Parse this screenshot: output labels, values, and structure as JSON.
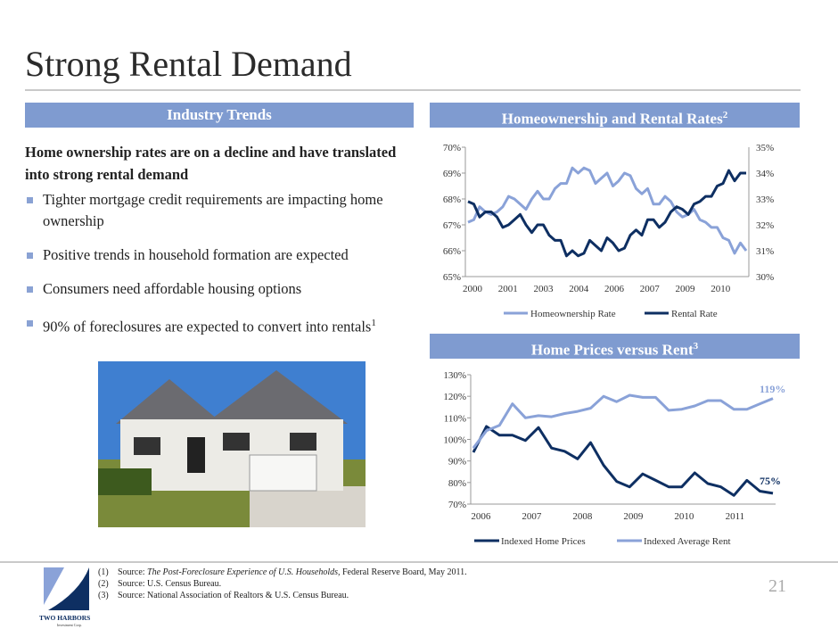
{
  "title": "Strong Rental Demand",
  "left_header": "Industry Trends",
  "right_header1": "Homeownership and Rental Rates",
  "right_header1_sup": "2",
  "right_header2": "Home Prices versus Rent",
  "right_header2_sup": "3",
  "lead": "Home ownership rates are on a decline and have translated into strong rental demand",
  "bullets": [
    "Tighter mortgage credit requirements are impacting home ownership",
    "Positive trends in household formation are expected",
    "Consumers need affordable housing options",
    "90% of foreclosures are expected to convert into rentals"
  ],
  "bullet4_sup": "1",
  "footnotes": [
    {
      "n": "(1)",
      "label": "Source:",
      "italic": "The Post-Foreclosure Experience of U.S. Households,",
      "text": " Federal Reserve Board, May 2011."
    },
    {
      "n": "(2)",
      "label": "Source:",
      "italic": "",
      "text": "U.S. Census Bureau."
    },
    {
      "n": "(3)",
      "label": "Source:",
      "italic": "",
      "text": "National Association of Realtors & U.S. Census Bureau."
    }
  ],
  "logo": {
    "name": "TWO HARBORS",
    "sub": "Investment Corp."
  },
  "page_number": "21",
  "colors": {
    "light": "#8aa2d8",
    "dark": "#0e2f62",
    "header": "#7f9bd0"
  },
  "chart_data": [
    {
      "type": "line",
      "title": "Homeownership and Rental Rates",
      "x_ticks": [
        "2000",
        "2001",
        "2003",
        "2004",
        "2006",
        "2007",
        "2009",
        "2010"
      ],
      "y_left": {
        "ticks": [
          "65%",
          "66%",
          "67%",
          "68%",
          "69%",
          "70%"
        ],
        "range": [
          65,
          70
        ]
      },
      "y_right": {
        "ticks": [
          "30%",
          "31%",
          "32%",
          "33%",
          "34%",
          "35%"
        ],
        "range": [
          30,
          35
        ]
      },
      "legend": "bottom",
      "series": [
        {
          "name": "Homeownership Rate",
          "axis": "left",
          "color": "#8aa2d8",
          "values": [
            67.1,
            67.2,
            67.7,
            67.5,
            67.4,
            67.5,
            67.7,
            68.1,
            68.0,
            67.8,
            67.6,
            68.0,
            68.3,
            68.0,
            68.0,
            68.4,
            68.6,
            68.6,
            69.2,
            69.0,
            69.2,
            69.1,
            68.6,
            68.8,
            69.0,
            68.5,
            68.7,
            69.0,
            68.9,
            68.4,
            68.2,
            68.4,
            67.8,
            67.8,
            68.1,
            67.9,
            67.5,
            67.3,
            67.4,
            67.6,
            67.2,
            67.1,
            66.9,
            66.9,
            66.5,
            66.4,
            65.9,
            66.3,
            66.0
          ]
        },
        {
          "name": "Rental Rate",
          "axis": "right",
          "color": "#0e2f62",
          "values": [
            32.9,
            32.8,
            32.3,
            32.5,
            32.5,
            32.3,
            31.9,
            32.0,
            32.2,
            32.4,
            32.0,
            31.7,
            32.0,
            32.0,
            31.6,
            31.4,
            31.4,
            30.8,
            31.0,
            30.8,
            30.9,
            31.4,
            31.2,
            31.0,
            31.5,
            31.3,
            31.0,
            31.1,
            31.6,
            31.8,
            31.6,
            32.2,
            32.2,
            31.9,
            32.1,
            32.5,
            32.7,
            32.6,
            32.4,
            32.8,
            32.9,
            33.1,
            33.1,
            33.5,
            33.6,
            34.1,
            33.7,
            34.0,
            34.0
          ]
        }
      ]
    },
    {
      "type": "line",
      "title": "Home Prices versus Rent",
      "x_ticks": [
        "2006",
        "2007",
        "2008",
        "2009",
        "2010",
        "2011"
      ],
      "y": {
        "ticks": [
          "70%",
          "80%",
          "90%",
          "100%",
          "110%",
          "120%",
          "130%"
        ],
        "range": [
          70,
          130
        ]
      },
      "legend": "bottom",
      "annotations": {
        "rent_end": "119%",
        "price_end": "75%"
      },
      "series": [
        {
          "name": "Indexed Home Prices",
          "color": "#0e2f62",
          "values": [
            94,
            106,
            102,
            102,
            99.5,
            105.5,
            96,
            94.5,
            91,
            98.5,
            88,
            80.5,
            78,
            84,
            81,
            78,
            78,
            84.5,
            79.5,
            78,
            74,
            81,
            76,
            75
          ]
        },
        {
          "name": "Indexed Average Rent",
          "color": "#8aa2d8",
          "values": [
            96,
            104,
            106.5,
            116.5,
            110,
            111,
            110.5,
            112,
            113,
            114.5,
            120,
            117.5,
            120.5,
            119.5,
            119.5,
            113.5,
            114,
            115.5,
            118,
            118,
            114,
            114,
            116.5,
            119
          ]
        }
      ]
    }
  ]
}
